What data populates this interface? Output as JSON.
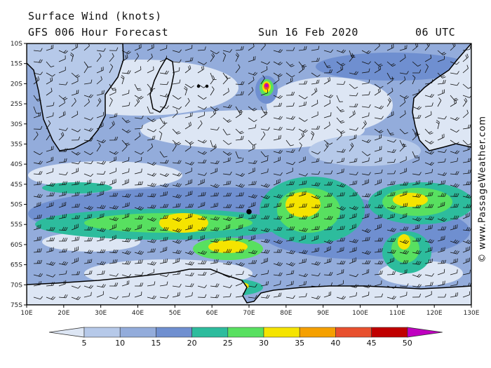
{
  "header": {
    "title": "Surface Wind (knots)",
    "model": "GFS 006 Hour Forecast",
    "date": "Sun 16 Feb 2020",
    "time": "06 UTC"
  },
  "copyright": "© www.PassageWeather.com",
  "axes": {
    "lat_labels": [
      "10S",
      "15S",
      "20S",
      "25S",
      "30S",
      "35S",
      "40S",
      "45S",
      "50S",
      "55S",
      "60S",
      "65S",
      "70S",
      "75S"
    ],
    "lon_labels": [
      "10E",
      "20E",
      "30E",
      "40E",
      "50E",
      "60E",
      "70E",
      "80E",
      "90E",
      "100E",
      "110E",
      "120E",
      "130E"
    ]
  },
  "legend": {
    "ticks": [
      "5",
      "10",
      "15",
      "20",
      "25",
      "30",
      "35",
      "40",
      "45",
      "50"
    ],
    "colors": [
      "#dde6f4",
      "#b6c9e9",
      "#93acdb",
      "#6f8fd0",
      "#2dbc9d",
      "#58e060",
      "#f5e400",
      "#f5a000",
      "#e8502e",
      "#c00000",
      "#c000c0"
    ]
  },
  "features": {
    "land_color": "#ffffff",
    "ocean_base_color": "#93acdb",
    "wind_barbs": true
  }
}
